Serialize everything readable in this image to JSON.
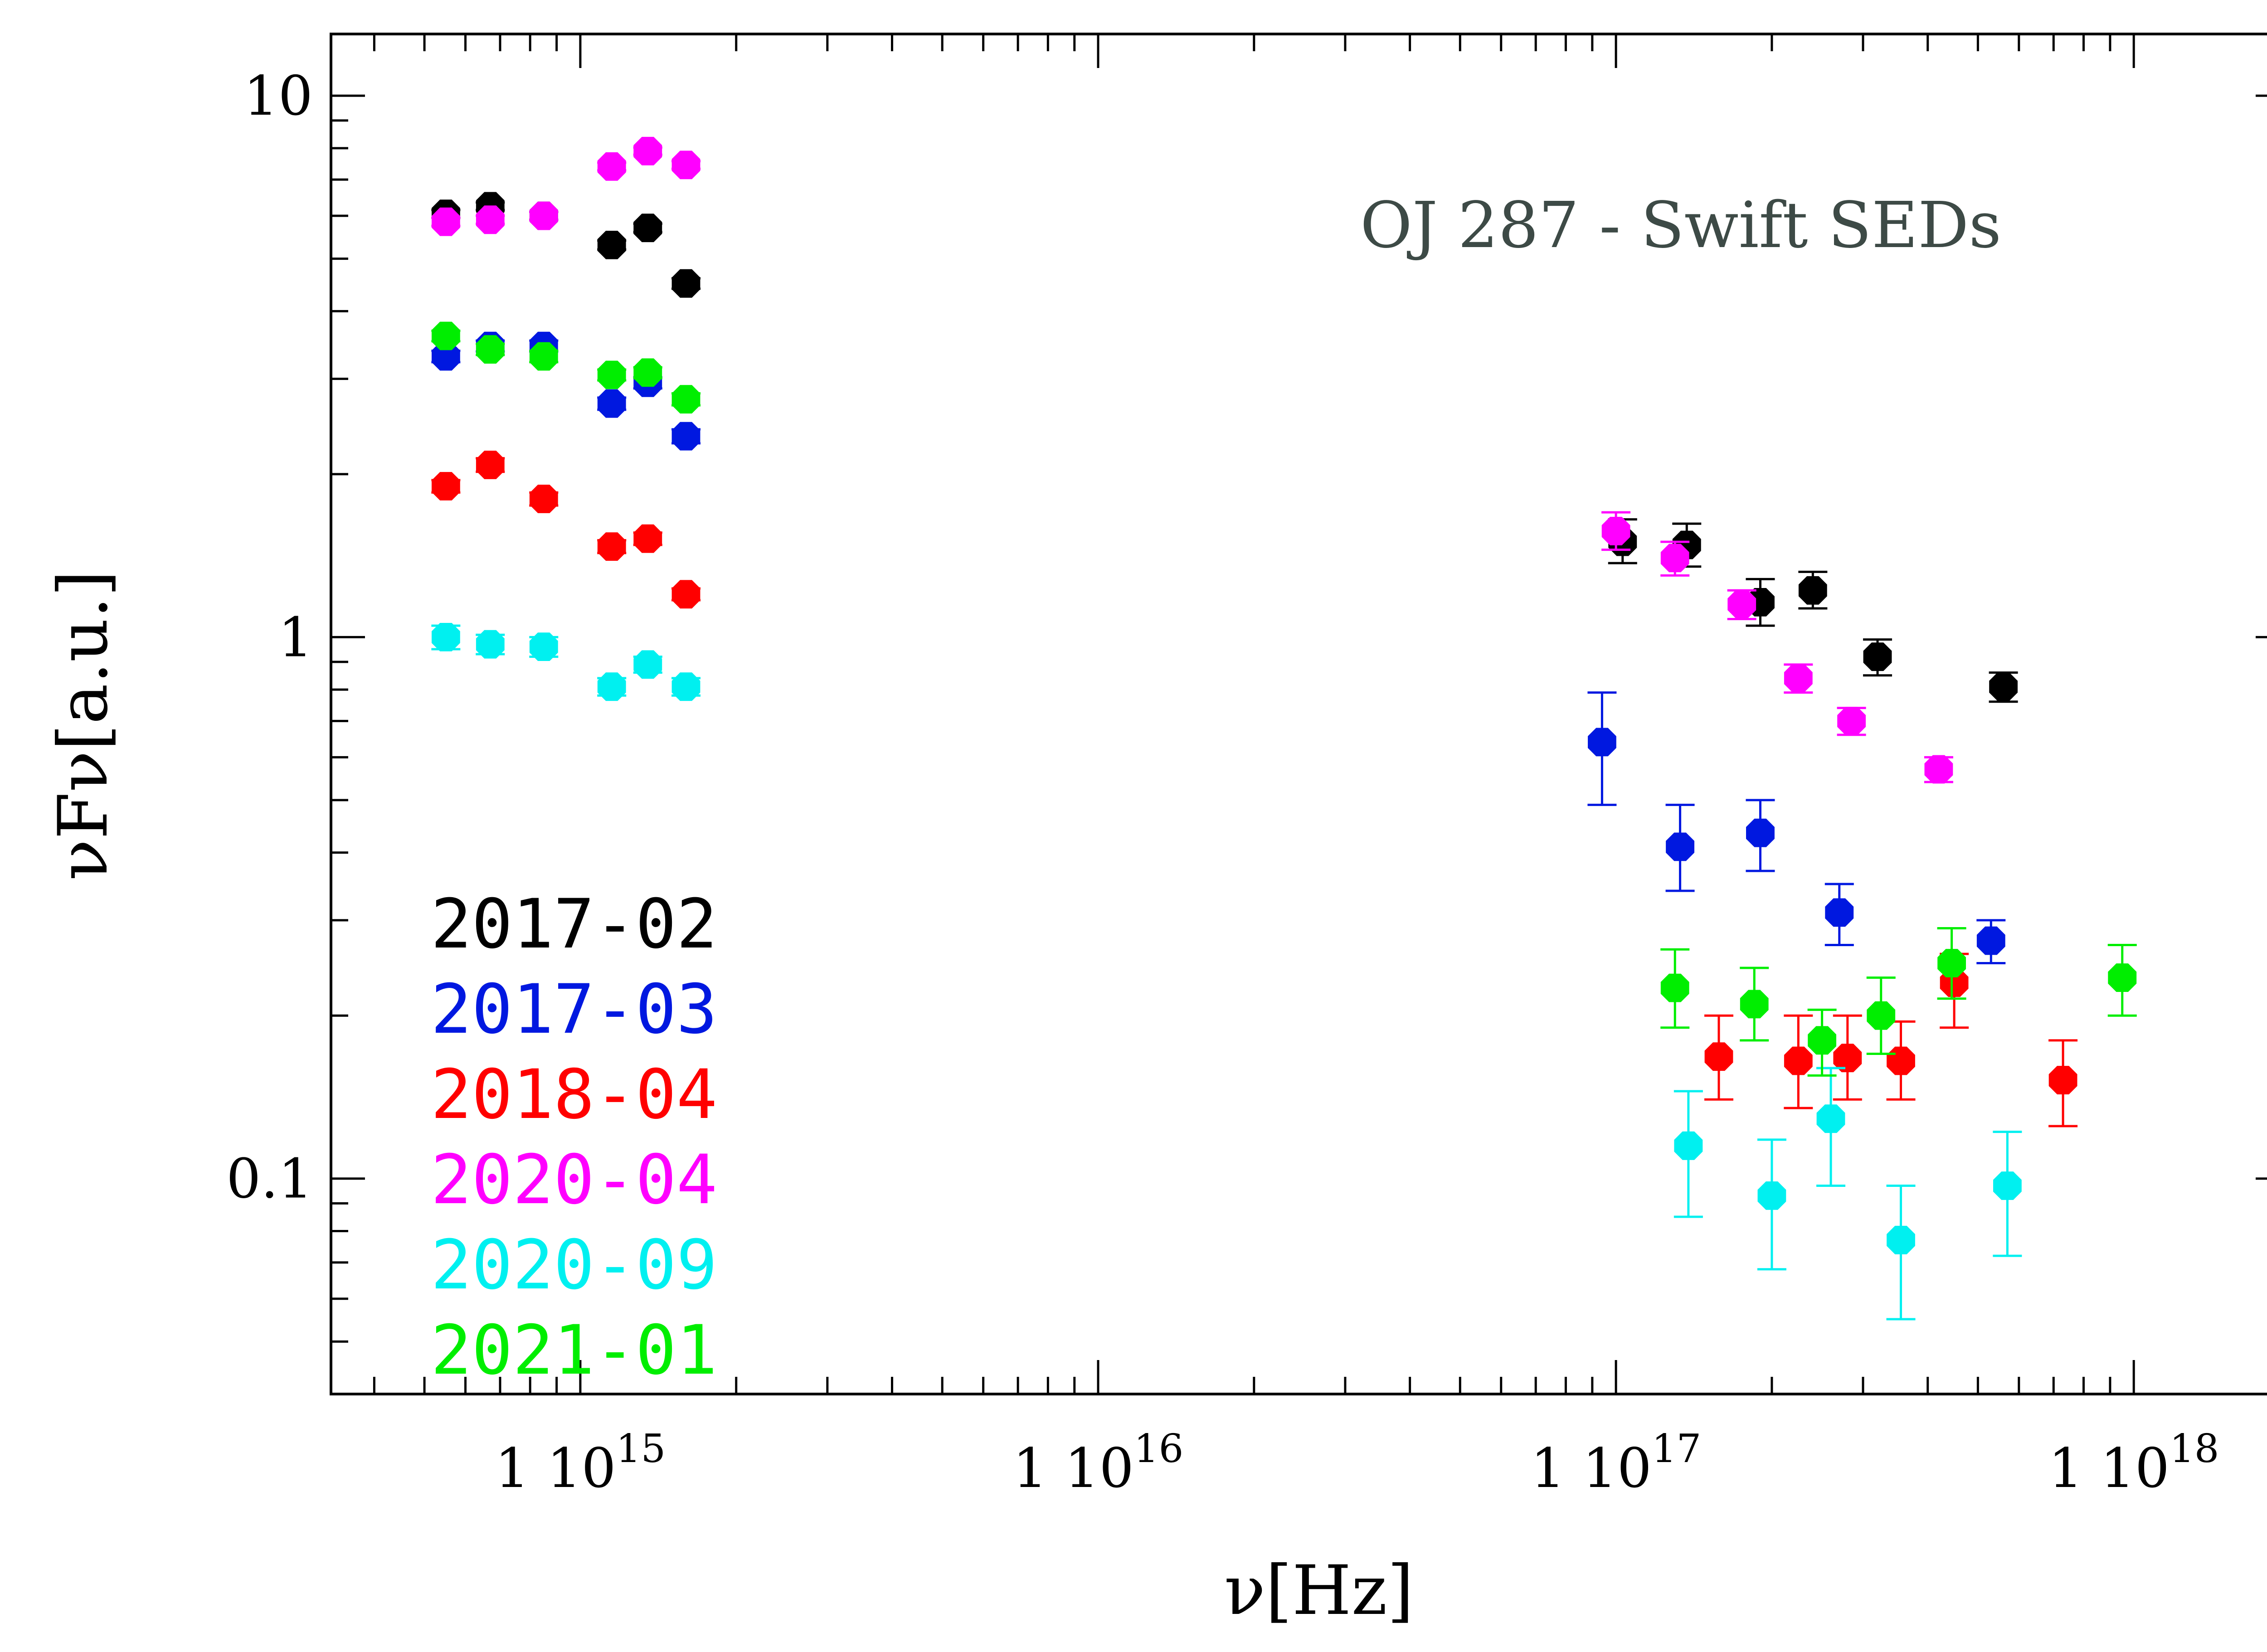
{
  "chart_data": {
    "type": "scatter",
    "title": "OJ 287 - Swift SEDs",
    "xlabel": "ν[Hz]",
    "ylabel": "νFν[a.u.]",
    "xscale": "log",
    "yscale": "log",
    "xlim": [
      330000000000000.0,
      2e+18
    ],
    "ylim": [
      0.04,
      13
    ],
    "x_ticks": [
      {
        "value": 1000000000000000.0,
        "mantissa": "1",
        "base": "10",
        "exp": "15"
      },
      {
        "value": 1e+16,
        "mantissa": "1",
        "base": "10",
        "exp": "16"
      },
      {
        "value": 1e+17,
        "mantissa": "1",
        "base": "10",
        "exp": "17"
      },
      {
        "value": 1e+18,
        "mantissa": "1",
        "base": "10",
        "exp": "18"
      }
    ],
    "y_ticks": [
      {
        "value": 10,
        "label": "10"
      },
      {
        "value": 1,
        "label": "1"
      },
      {
        "value": 0.1,
        "label": "0.1"
      }
    ],
    "grid": false,
    "legend_position": "bottom-left",
    "series": [
      {
        "name": "2017-02",
        "color": "#000000",
        "points": [
          [
            550000000000000.0,
            6.05,
            5.95,
            6.15
          ],
          [
            670000000000000.0,
            6.25,
            6.15,
            6.35
          ],
          [
            850000000000000.0,
            6.0,
            5.9,
            6.1
          ],
          [
            1150000000000000.0,
            5.3,
            5.2,
            5.4
          ],
          [
            1350000000000000.0,
            5.7,
            5.6,
            5.8
          ],
          [
            1600000000000000.0,
            4.5,
            4.4,
            4.6
          ],
          [
            1.03e+17,
            1.5,
            1.37,
            1.65
          ],
          [
            1.37e+17,
            1.48,
            1.35,
            1.62
          ],
          [
            1.9e+17,
            1.16,
            1.05,
            1.28
          ],
          [
            2.4e+17,
            1.22,
            1.13,
            1.32
          ],
          [
            3.2e+17,
            0.92,
            0.85,
            0.99
          ],
          [
            5.6e+17,
            0.81,
            0.76,
            0.86
          ]
        ]
      },
      {
        "name": "2017-03",
        "color": "#0018e0",
        "points": [
          [
            550000000000000.0,
            3.3,
            3.22,
            3.38
          ],
          [
            670000000000000.0,
            3.45,
            3.37,
            3.53
          ],
          [
            850000000000000.0,
            3.45,
            3.37,
            3.53
          ],
          [
            1150000000000000.0,
            2.7,
            2.63,
            2.77
          ],
          [
            1350000000000000.0,
            2.95,
            2.88,
            3.02
          ],
          [
            1600000000000000.0,
            2.35,
            2.28,
            2.42
          ],
          [
            9.4e+16,
            0.64,
            0.49,
            0.79
          ],
          [
            1.33e+17,
            0.41,
            0.34,
            0.49
          ],
          [
            1.9e+17,
            0.435,
            0.37,
            0.5
          ],
          [
            2.7e+17,
            0.31,
            0.27,
            0.35
          ],
          [
            5.3e+17,
            0.275,
            0.25,
            0.3
          ]
        ]
      },
      {
        "name": "2018-04",
        "color": "#ff0000",
        "points": [
          [
            550000000000000.0,
            1.9,
            1.85,
            1.95
          ],
          [
            670000000000000.0,
            2.08,
            2.02,
            2.14
          ],
          [
            850000000000000.0,
            1.8,
            1.75,
            1.85
          ],
          [
            1150000000000000.0,
            1.47,
            1.43,
            1.51
          ],
          [
            1350000000000000.0,
            1.52,
            1.48,
            1.56
          ],
          [
            1600000000000000.0,
            1.2,
            1.17,
            1.23
          ],
          [
            1.58e+17,
            0.168,
            0.14,
            0.2
          ],
          [
            2.25e+17,
            0.165,
            0.135,
            0.2
          ],
          [
            2.8e+17,
            0.167,
            0.14,
            0.2
          ],
          [
            3.55e+17,
            0.165,
            0.14,
            0.195
          ],
          [
            4.5e+17,
            0.23,
            0.19,
            0.26
          ],
          [
            7.3e+17,
            0.152,
            0.125,
            0.18
          ]
        ]
      },
      {
        "name": "2020-04",
        "color": "#ff00ff",
        "points": [
          [
            550000000000000.0,
            5.85,
            5.75,
            5.95
          ],
          [
            670000000000000.0,
            5.9,
            5.8,
            6.0
          ],
          [
            850000000000000.0,
            6.0,
            5.9,
            6.1
          ],
          [
            1150000000000000.0,
            7.4,
            7.28,
            7.52
          ],
          [
            1350000000000000.0,
            7.9,
            7.78,
            8.02
          ],
          [
            1600000000000000.0,
            7.45,
            7.33,
            7.57
          ],
          [
            1e+17,
            1.57,
            1.45,
            1.7
          ],
          [
            1.3e+17,
            1.4,
            1.3,
            1.5
          ],
          [
            1.75e+17,
            1.15,
            1.08,
            1.22
          ],
          [
            2.25e+17,
            0.84,
            0.79,
            0.89
          ],
          [
            2.85e+17,
            0.7,
            0.66,
            0.74
          ],
          [
            4.2e+17,
            0.57,
            0.54,
            0.6
          ]
        ]
      },
      {
        "name": "2020-09",
        "color": "#00f0f0",
        "points": [
          [
            550000000000000.0,
            1.0,
            0.95,
            1.05
          ],
          [
            670000000000000.0,
            0.97,
            0.93,
            1.01
          ],
          [
            850000000000000.0,
            0.96,
            0.92,
            1.0
          ],
          [
            1150000000000000.0,
            0.81,
            0.78,
            0.84
          ],
          [
            1350000000000000.0,
            0.89,
            0.86,
            0.92
          ],
          [
            1600000000000000.0,
            0.81,
            0.78,
            0.84
          ],
          [
            1.38e+17,
            0.115,
            0.085,
            0.145
          ],
          [
            2e+17,
            0.093,
            0.068,
            0.118
          ],
          [
            2.6e+17,
            0.129,
            0.097,
            0.16
          ],
          [
            3.55e+17,
            0.077,
            0.055,
            0.097
          ],
          [
            5.7e+17,
            0.097,
            0.072,
            0.122
          ]
        ]
      },
      {
        "name": "2021-01",
        "color": "#00ee00",
        "points": [
          [
            550000000000000.0,
            3.6,
            3.52,
            3.68
          ],
          [
            670000000000000.0,
            3.4,
            3.32,
            3.48
          ],
          [
            850000000000000.0,
            3.3,
            3.22,
            3.38
          ],
          [
            1150000000000000.0,
            3.05,
            2.98,
            3.12
          ],
          [
            1350000000000000.0,
            3.08,
            3.01,
            3.15
          ],
          [
            1600000000000000.0,
            2.75,
            2.68,
            2.82
          ],
          [
            1.3e+17,
            0.225,
            0.19,
            0.265
          ],
          [
            1.85e+17,
            0.21,
            0.18,
            0.245
          ],
          [
            2.5e+17,
            0.18,
            0.155,
            0.205
          ],
          [
            3.25e+17,
            0.2,
            0.17,
            0.235
          ],
          [
            4.45e+17,
            0.25,
            0.215,
            0.29
          ],
          [
            9.5e+17,
            0.235,
            0.2,
            0.27
          ]
        ]
      }
    ]
  }
}
